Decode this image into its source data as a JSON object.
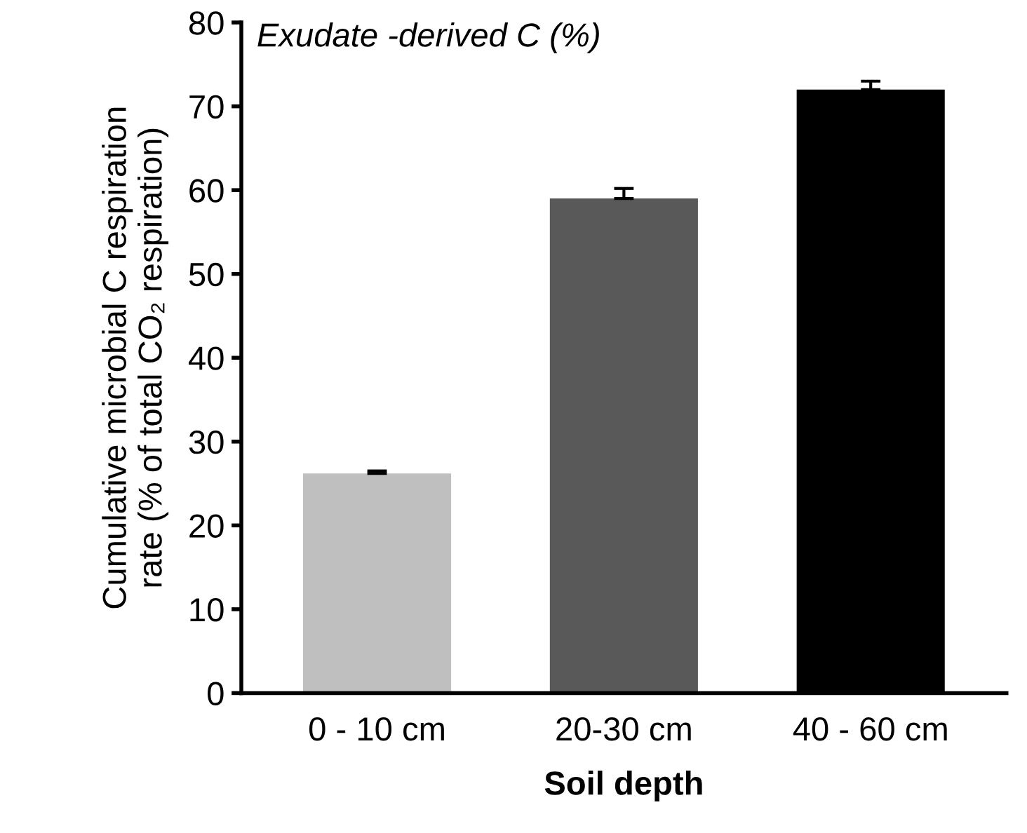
{
  "chart_data": {
    "type": "bar",
    "title": "Exudate -derived C (%)",
    "xlabel": "Soil depth",
    "ylabel": "Cumulative microbial C respiration\nrate (% of total CO₂ respiration)",
    "categories": [
      "0 - 10 cm",
      "20-30 cm",
      "40 - 60 cm"
    ],
    "values": [
      26.2,
      59,
      72
    ],
    "colors": [
      "#bfbfbf",
      "#595959",
      "#000000"
    ],
    "errors": [
      [
        26.2,
        26.5
      ],
      [
        59,
        60.2
      ],
      [
        72,
        73
      ]
    ],
    "ylim": [
      0,
      80
    ],
    "yticks": [
      0,
      10,
      20,
      30,
      40,
      50,
      60,
      70,
      80
    ],
    "grid": false,
    "legend": false
  }
}
